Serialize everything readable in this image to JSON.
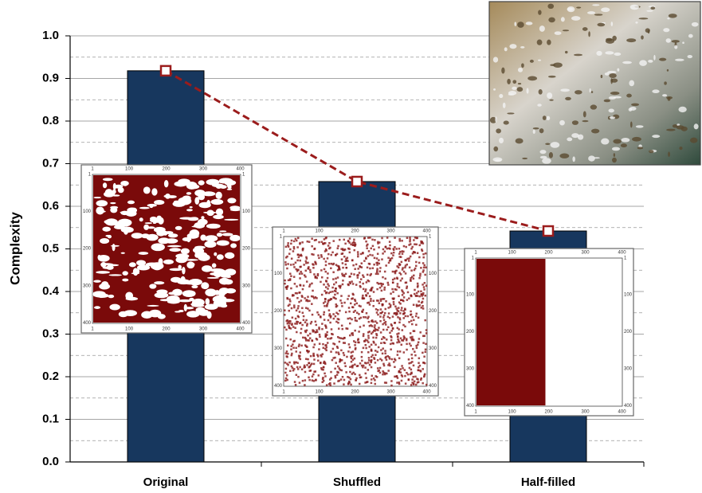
{
  "chart_data": {
    "type": "bar",
    "y_label": "Complexity",
    "categories": [
      "Original",
      "Shuffled",
      "Half-filled"
    ],
    "series": [
      {
        "type": "bar",
        "color": "#17375e",
        "values": [
          0.918,
          0.658,
          0.542
        ]
      },
      {
        "type": "line",
        "color": "#9b1c1c",
        "values": [
          0.918,
          0.658,
          0.542
        ]
      }
    ],
    "ylim": [
      0,
      1
    ],
    "yticks": [
      {
        "value": 0,
        "label": "0.0"
      },
      {
        "value": 0.1,
        "label": "0.1"
      },
      {
        "value": 0.2,
        "label": "0.2"
      },
      {
        "value": 0.3,
        "label": "0.3"
      },
      {
        "value": 0.4,
        "label": "0.4"
      },
      {
        "value": 0.5,
        "label": "0.5"
      },
      {
        "value": 0.6,
        "label": "0.6"
      },
      {
        "value": 0.7,
        "label": "0.7"
      },
      {
        "value": 0.8,
        "label": "0.8"
      },
      {
        "value": 0.9,
        "label": "0.9"
      },
      {
        "value": 1,
        "label": "1.0"
      }
    ],
    "minor_yticks": [
      0.05,
      0.15,
      0.25,
      0.35,
      0.45,
      0.55,
      0.65,
      0.75,
      0.85,
      0.95
    ],
    "grid": true,
    "inset_ticks": [
      1,
      100,
      200,
      300,
      400
    ]
  }
}
